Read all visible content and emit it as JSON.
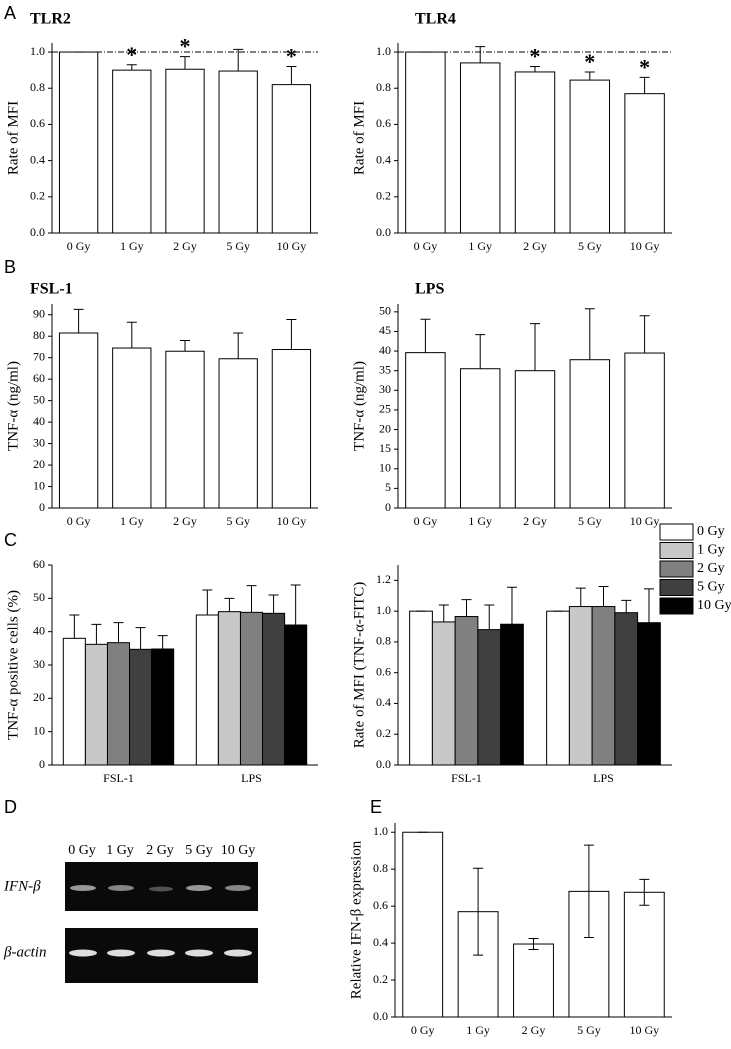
{
  "panel_labels": [
    "A",
    "B",
    "C",
    "D",
    "E"
  ],
  "gel": {
    "lanes": [
      "0 Gy",
      "1 Gy",
      "2 Gy",
      "5 Gy",
      "10 Gy"
    ],
    "rows": [
      "IFN-β",
      "β-actin"
    ]
  },
  "chart_data": [
    {
      "type": "bar",
      "title": "TLR2",
      "ylabel": "Rate of MFI",
      "categories": [
        "0 Gy",
        "1 Gy",
        "2 Gy",
        "5 Gy",
        "10 Gy"
      ],
      "values": [
        1.0,
        0.9,
        0.905,
        0.895,
        0.82
      ],
      "errors": [
        0,
        0.03,
        0.07,
        0.12,
        0.1
      ],
      "error_style": "up",
      "annotations": [
        null,
        "*",
        "*",
        null,
        "*"
      ],
      "reference_line": 1.0,
      "ylim": [
        0,
        1.05
      ],
      "yticks": [
        {
          "value": 0,
          "label": "0.0"
        },
        0.2,
        0.4,
        0.6,
        0.8,
        {
          "value": 1,
          "label": "1.0"
        }
      ]
    },
    {
      "type": "bar",
      "title": "TLR4",
      "ylabel": "Rate of MFI",
      "categories": [
        "0 Gy",
        "1 Gy",
        "2 Gy",
        "5 Gy",
        "10 Gy"
      ],
      "values": [
        1.0,
        0.94,
        0.89,
        0.845,
        0.77
      ],
      "errors": [
        0,
        0.09,
        0.03,
        0.045,
        0.09
      ],
      "error_style": "up",
      "annotations": [
        null,
        null,
        "*",
        "*",
        "*"
      ],
      "reference_line": 1.0,
      "ylim": [
        0,
        1.05
      ],
      "yticks": [
        {
          "value": 0,
          "label": "0.0"
        },
        0.2,
        0.4,
        0.6,
        0.8,
        {
          "value": 1,
          "label": "1.0"
        }
      ]
    },
    {
      "type": "bar",
      "title": "FSL-1",
      "ylabel": "TNF-α (ng/ml)",
      "categories": [
        "0 Gy",
        "1 Gy",
        "2 Gy",
        "5 Gy",
        "10 Gy"
      ],
      "values": [
        81.5,
        74.5,
        73,
        69.5,
        73.8
      ],
      "errors": [
        11,
        12,
        5,
        12,
        14
      ],
      "error_style": "up",
      "ylim": [
        0,
        95
      ],
      "yticks": [
        0,
        10,
        20,
        30,
        40,
        50,
        60,
        70,
        80,
        90
      ]
    },
    {
      "type": "bar",
      "title": "LPS",
      "ylabel": "TNF-α (ng/ml)",
      "categories": [
        "0 Gy",
        "1 Gy",
        "2 Gy",
        "5 Gy",
        "10 Gy"
      ],
      "values": [
        39.6,
        35.5,
        35,
        37.8,
        39.5
      ],
      "errors": [
        8.5,
        8.7,
        12,
        13,
        9.5
      ],
      "error_style": "up",
      "ylim": [
        0,
        52
      ],
      "yticks": [
        0,
        5,
        10,
        15,
        20,
        25,
        30,
        35,
        40,
        45,
        50
      ]
    },
    {
      "type": "grouped-bar",
      "ylabel": "TNF-α positive cells (%)",
      "categories": [
        "FSL-1",
        "LPS"
      ],
      "series": [
        {
          "color": "#ffffff",
          "values": [
            38,
            45
          ],
          "errors": [
            7,
            7.5
          ]
        },
        {
          "color": "#c8c8c8",
          "values": [
            36.2,
            46
          ],
          "errors": [
            6,
            4
          ]
        },
        {
          "color": "#808080",
          "values": [
            36.7,
            45.8
          ],
          "errors": [
            6,
            8
          ]
        },
        {
          "color": "#404040",
          "values": [
            34.7,
            45.5
          ],
          "errors": [
            6.5,
            5.5
          ]
        },
        {
          "color": "#000000",
          "values": [
            34.8,
            42
          ],
          "errors": [
            4,
            12
          ]
        }
      ],
      "ylim": [
        0,
        60
      ],
      "yticks": [
        0,
        10,
        20,
        30,
        40,
        50,
        60
      ]
    },
    {
      "type": "grouped-bar",
      "ylabel": "Rate of MFI (TNF-α-FITC)",
      "categories": [
        "FSL-1",
        "LPS"
      ],
      "series": [
        {
          "name": "0 Gy",
          "color": "#ffffff",
          "values": [
            1.0,
            1.0
          ],
          "errors": [
            0,
            0
          ]
        },
        {
          "name": "1 Gy",
          "color": "#c8c8c8",
          "values": [
            0.93,
            1.03
          ],
          "errors": [
            0.11,
            0.12
          ]
        },
        {
          "name": "2 Gy",
          "color": "#808080",
          "values": [
            0.965,
            1.03
          ],
          "errors": [
            0.11,
            0.13
          ]
        },
        {
          "name": "5 Gy",
          "color": "#404040",
          "values": [
            0.88,
            0.99
          ],
          "errors": [
            0.16,
            0.08
          ]
        },
        {
          "name": "10 Gy",
          "color": "#000000",
          "values": [
            0.915,
            0.925
          ],
          "errors": [
            0.24,
            0.22
          ]
        }
      ],
      "legend": "top-right",
      "ylim": [
        0,
        1.3
      ],
      "yticks": [
        {
          "value": 0,
          "label": "0.0"
        },
        0.2,
        0.4,
        0.6,
        0.8,
        {
          "value": 1,
          "label": "1.0"
        },
        1.2
      ]
    },
    {
      "type": "bar",
      "ylabel": "Relative IFN-β expression",
      "categories": [
        "0 Gy",
        "1 Gy",
        "2 Gy",
        "5 Gy",
        "10 Gy"
      ],
      "values": [
        1.0,
        0.57,
        0.395,
        0.68,
        0.675
      ],
      "errors": [
        0,
        0.235,
        0.03,
        0.25,
        0.07
      ],
      "error_style": "both",
      "ylim": [
        0,
        1.05
      ],
      "yticks": [
        {
          "value": 0,
          "label": "0.0"
        },
        0.2,
        0.4,
        0.6,
        0.8,
        {
          "value": 1,
          "label": "1.0"
        }
      ]
    }
  ]
}
